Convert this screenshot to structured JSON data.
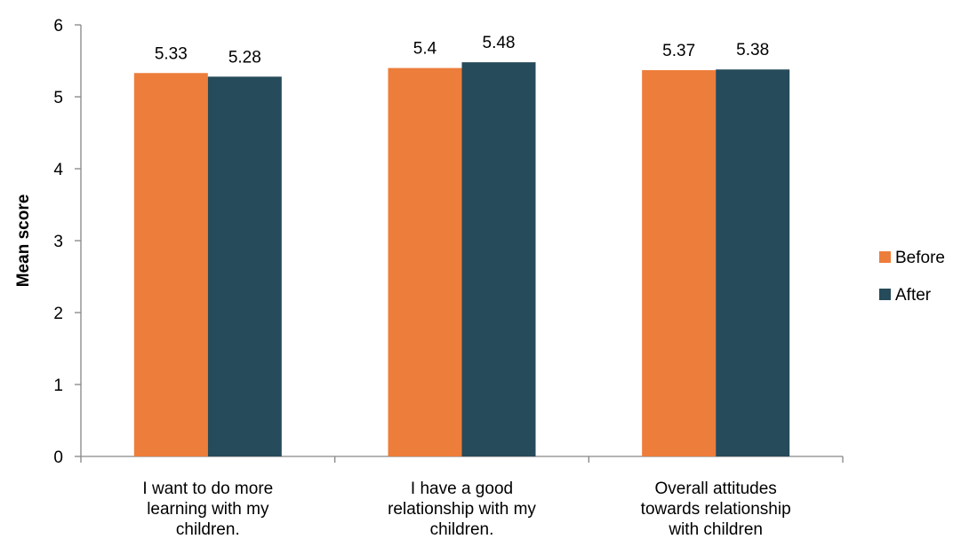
{
  "chart_data": {
    "type": "bar",
    "categories": [
      [
        "I want to do more",
        "learning with my",
        "children."
      ],
      [
        "I have a good",
        "relationship with my",
        "children."
      ],
      [
        "Overall attitudes",
        "towards relationship",
        "with children"
      ]
    ],
    "series": [
      {
        "name": "Before",
        "values": [
          5.33,
          5.4,
          5.37
        ],
        "labels": [
          "5.33",
          "5.4",
          "5.37"
        ],
        "color": "#ED7D3A"
      },
      {
        "name": "After",
        "values": [
          5.28,
          5.48,
          5.38
        ],
        "labels": [
          "5.28",
          "5.48",
          "5.38"
        ],
        "color": "#264B5A"
      }
    ],
    "ylabel": "Mean score",
    "ylim": [
      0,
      6
    ],
    "yticks": [
      "0",
      "1",
      "2",
      "3",
      "4",
      "5",
      "6"
    ],
    "grid": false,
    "legend_position": "right"
  }
}
